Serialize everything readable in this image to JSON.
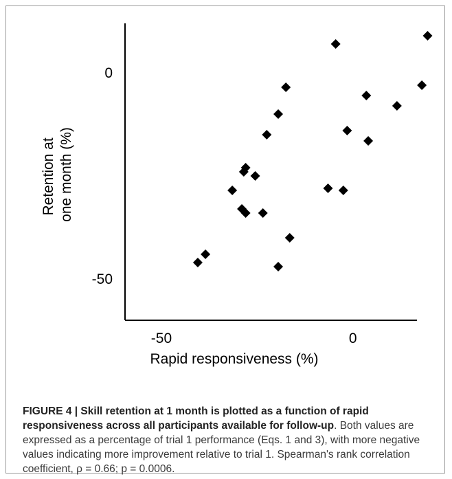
{
  "chart_data": {
    "type": "scatter",
    "title": "",
    "xlabel": "Rapid responsiveness (%)",
    "ylabel": "Retention at one month (%)",
    "ylabel_lines": [
      "Retention at",
      "one month (%)"
    ],
    "xticks": [
      -50,
      0
    ],
    "yticks": [
      0,
      -50
    ],
    "xlim": [
      -59.5,
      23
    ],
    "ylim": [
      -60,
      12
    ],
    "grid": false,
    "marker": "diamond",
    "color": "#000000",
    "points": [
      {
        "x": -40.5,
        "y": -46.0
      },
      {
        "x": -38.5,
        "y": -44.0
      },
      {
        "x": -31.5,
        "y": -28.5
      },
      {
        "x": -29.0,
        "y": -33.0
      },
      {
        "x": -28.0,
        "y": -34.0
      },
      {
        "x": -28.5,
        "y": -24.0
      },
      {
        "x": -28.0,
        "y": -23.0
      },
      {
        "x": -25.5,
        "y": -25.0
      },
      {
        "x": -23.5,
        "y": -34.0
      },
      {
        "x": -22.5,
        "y": -15.0
      },
      {
        "x": -19.5,
        "y": -10.0
      },
      {
        "x": -19.5,
        "y": -47.0
      },
      {
        "x": -17.5,
        "y": -3.5
      },
      {
        "x": -16.5,
        "y": -40.0
      },
      {
        "x": -6.5,
        "y": -28.0
      },
      {
        "x": -4.5,
        "y": 7.0
      },
      {
        "x": -2.5,
        "y": -28.5
      },
      {
        "x": -1.5,
        "y": -14.0
      },
      {
        "x": 3.5,
        "y": -5.5
      },
      {
        "x": 4.0,
        "y": -16.5
      },
      {
        "x": 11.5,
        "y": -8.0
      },
      {
        "x": 18.0,
        "y": -3.0
      },
      {
        "x": 19.5,
        "y": 9.0
      }
    ]
  },
  "caption": {
    "bold_text": "FIGURE 4 | Skill retention at 1 month is plotted as a function of rapid responsiveness across all participants available for follow-up",
    "plain_text": ". Both values are expressed as a percentage of trial 1 performance (Eqs. 1 and 3), with more negative values indicating more improvement relative to trial 1. Spearman's rank correlation coefficient, ρ = 0.66; p = 0.0006."
  }
}
